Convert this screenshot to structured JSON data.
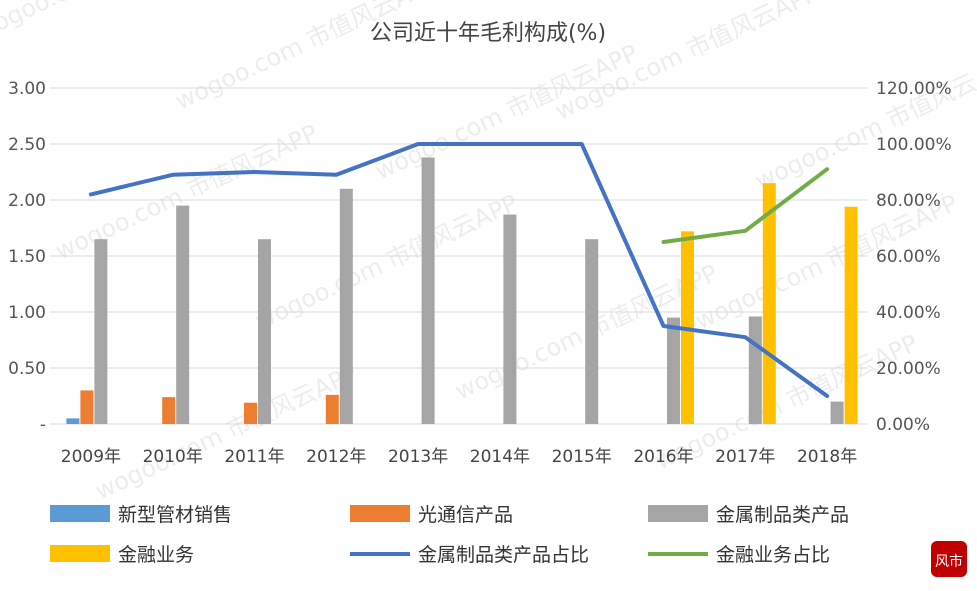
{
  "chart_data": {
    "type": "bar",
    "title": "公司近十年毛利构成(%)",
    "categories": [
      "2009年",
      "2010年",
      "2011年",
      "2012年",
      "2013年",
      "2014年",
      "2015年",
      "2016年",
      "2017年",
      "2018年"
    ],
    "y_left": {
      "range": [
        0,
        3.0
      ],
      "ticks": [
        "-",
        "0.50",
        "1.00",
        "1.50",
        "2.00",
        "2.50",
        "3.00"
      ],
      "tick_values": [
        0,
        0.5,
        1.0,
        1.5,
        2.0,
        2.5,
        3.0
      ]
    },
    "y_right": {
      "range": [
        0,
        120
      ],
      "ticks": [
        "0.00%",
        "20.00%",
        "40.00%",
        "60.00%",
        "80.00%",
        "100.00%",
        "120.00%"
      ],
      "tick_values": [
        0,
        20,
        40,
        60,
        80,
        100,
        120
      ]
    },
    "bar_series": [
      {
        "name": "新型管材销售",
        "color": "#5B9BD5",
        "values": [
          0.05,
          0,
          0,
          0,
          0,
          0,
          0,
          0,
          0,
          0
        ]
      },
      {
        "name": "光通信产品",
        "color": "#ED7D31",
        "values": [
          0.3,
          0.24,
          0.19,
          0.26,
          0,
          0,
          0,
          0,
          0,
          0
        ]
      },
      {
        "name": "金属制品类产品",
        "color": "#A5A5A5",
        "values": [
          1.65,
          1.95,
          1.65,
          2.1,
          2.38,
          1.87,
          1.65,
          0.95,
          0.96,
          0.2
        ]
      },
      {
        "name": "金融业务",
        "color": "#FFC000",
        "values": [
          0,
          0,
          0,
          0,
          0,
          0,
          0,
          1.72,
          2.15,
          1.94
        ]
      }
    ],
    "line_series": [
      {
        "name": "金属制品类产品占比",
        "color": "#4472C4",
        "axis": "right",
        "values": [
          82,
          89,
          90,
          89,
          100,
          100,
          100,
          35,
          31,
          10
        ]
      },
      {
        "name": "金融业务占比",
        "color": "#70AD47",
        "axis": "right",
        "values": [
          null,
          null,
          null,
          null,
          null,
          null,
          null,
          65,
          69,
          91
        ]
      }
    ],
    "legend": {
      "position": "bottom",
      "items": [
        {
          "name": "新型管材销售",
          "color": "#5B9BD5",
          "kind": "bar"
        },
        {
          "name": "光通信产品",
          "color": "#ED7D31",
          "kind": "bar"
        },
        {
          "name": "金属制品类产品",
          "color": "#A5A5A5",
          "kind": "bar"
        },
        {
          "name": "金融业务",
          "color": "#FFC000",
          "kind": "bar"
        },
        {
          "name": "金属制品类产品占比",
          "color": "#4472C4",
          "kind": "line"
        },
        {
          "name": "金融业务占比",
          "color": "#70AD47",
          "kind": "line"
        }
      ]
    },
    "grid": true
  },
  "watermark": {
    "text": "wogoo.com 市值风云APP"
  },
  "logo": {
    "text": "风市值",
    "color": "#C00000"
  }
}
